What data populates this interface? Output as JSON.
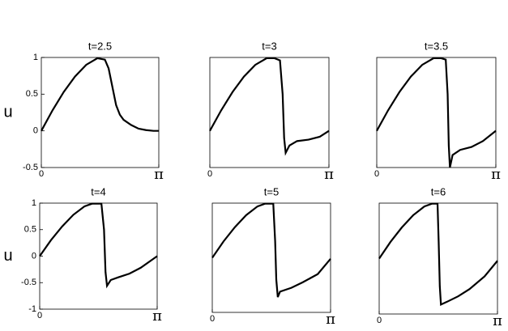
{
  "chart_data": [
    {
      "type": "line",
      "title": "t=2.5",
      "ylabel": "u",
      "color": "#000000",
      "x": [
        0,
        0.3,
        0.6,
        0.9,
        1.2,
        1.5,
        1.7,
        1.8,
        1.9,
        2.0,
        2.1,
        2.2,
        2.4,
        2.6,
        2.8,
        3.0,
        3.1416
      ],
      "values": [
        0,
        0.28,
        0.53,
        0.74,
        0.9,
        0.99,
        0.97,
        0.85,
        0.6,
        0.35,
        0.22,
        0.15,
        0.08,
        0.03,
        0.01,
        0,
        0
      ],
      "xlim": [
        0,
        3.1416
      ],
      "ylim": [
        -0.5,
        1
      ],
      "xticks": [
        0,
        {
          "value": 3.1416,
          "label": "π"
        }
      ],
      "yticks": [
        -0.5,
        0,
        0.5,
        1
      ]
    },
    {
      "type": "line",
      "title": "t=3",
      "color": "#000000",
      "x": [
        0,
        0.3,
        0.6,
        0.9,
        1.2,
        1.5,
        1.7,
        1.85,
        1.92,
        1.96,
        2.0,
        2.1,
        2.3,
        2.6,
        2.9,
        3.1416
      ],
      "values": [
        0,
        0.28,
        0.53,
        0.74,
        0.9,
        0.99,
        0.99,
        0.96,
        0.5,
        -0.1,
        -0.3,
        -0.2,
        -0.14,
        -0.12,
        -0.08,
        0
      ],
      "xlim": [
        0,
        3.1416
      ],
      "ylim": [
        -0.5,
        1
      ],
      "xticks": [
        0,
        {
          "value": 3.1416,
          "label": "π"
        }
      ]
    },
    {
      "type": "line",
      "title": "t=3.5",
      "color": "#000000",
      "x": [
        0,
        0.3,
        0.6,
        0.9,
        1.2,
        1.5,
        1.7,
        1.82,
        1.87,
        1.9,
        1.93,
        2.0,
        2.2,
        2.5,
        2.8,
        3.1416
      ],
      "values": [
        0,
        0.28,
        0.53,
        0.74,
        0.9,
        0.99,
        0.99,
        0.97,
        0.5,
        -0.2,
        -0.5,
        -0.33,
        -0.26,
        -0.22,
        -0.14,
        0
      ],
      "xlim": [
        0,
        3.1416
      ],
      "ylim": [
        -0.5,
        1
      ],
      "xticks": [
        0,
        {
          "value": 3.1416,
          "label": "π"
        }
      ]
    },
    {
      "type": "line",
      "title": "t=4",
      "ylabel": "u",
      "color": "#000000",
      "x": [
        0,
        0.3,
        0.6,
        0.9,
        1.2,
        1.4,
        1.65,
        1.72,
        1.76,
        1.8,
        1.9,
        2.1,
        2.4,
        2.7,
        3.1416
      ],
      "values": [
        0,
        0.3,
        0.56,
        0.78,
        0.94,
        0.99,
        0.99,
        0.5,
        -0.3,
        -0.56,
        -0.45,
        -0.4,
        -0.33,
        -0.22,
        0
      ],
      "xlim": [
        0,
        3.1416
      ],
      "ylim": [
        -1,
        1
      ],
      "xticks": [
        0,
        {
          "value": 3.1416,
          "label": "π"
        }
      ],
      "yticks": [
        -1,
        -0.5,
        0,
        0.5,
        1
      ]
    },
    {
      "type": "line",
      "title": "t=5",
      "color": "#000000",
      "x": [
        0,
        0.3,
        0.6,
        0.9,
        1.2,
        1.4,
        1.62,
        1.67,
        1.7,
        1.74,
        1.8,
        2.1,
        2.4,
        2.8,
        3.1416
      ],
      "values": [
        0,
        0.3,
        0.56,
        0.78,
        0.94,
        0.99,
        0.99,
        0.3,
        -0.4,
        -0.72,
        -0.62,
        -0.55,
        -0.45,
        -0.3,
        -0.02
      ],
      "xlim": [
        0,
        3.1416
      ],
      "ylim": [
        -1,
        1
      ],
      "xticks": [
        0,
        {
          "value": 3.1416,
          "label": "π"
        }
      ]
    },
    {
      "type": "line",
      "title": "t=6",
      "color": "#000000",
      "x": [
        0,
        0.3,
        0.6,
        0.9,
        1.2,
        1.4,
        1.55,
        1.58,
        1.61,
        1.64,
        1.8,
        2.1,
        2.4,
        2.8,
        3.1416
      ],
      "values": [
        0,
        0.3,
        0.56,
        0.78,
        0.94,
        0.99,
        0.99,
        0.3,
        -0.5,
        -0.83,
        -0.78,
        -0.68,
        -0.55,
        -0.32,
        -0.04
      ],
      "xlim": [
        0,
        3.1416
      ],
      "ylim": [
        -1,
        1
      ],
      "xticks": [
        0,
        {
          "value": 3.1416,
          "label": "π"
        }
      ]
    }
  ]
}
